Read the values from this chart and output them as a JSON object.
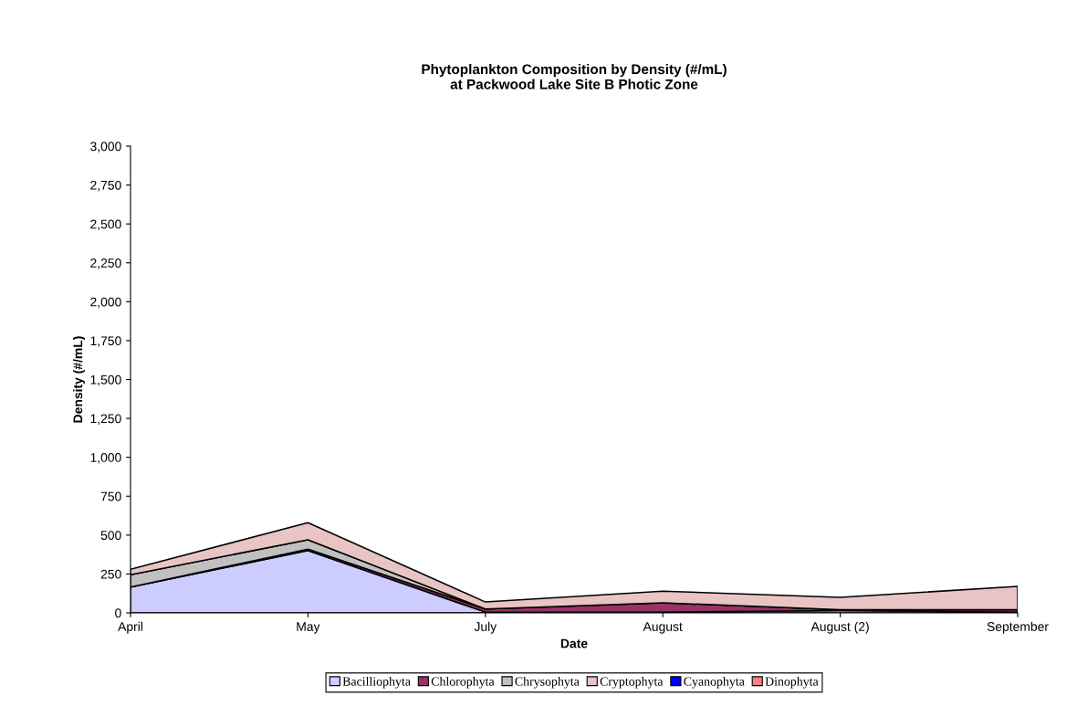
{
  "chart_data": {
    "type": "area",
    "stacked": true,
    "title": "Phytoplankton Composition by Density (#/mL)\nat Packwood Lake Site B Photic Zone",
    "xlabel": "Date",
    "ylabel": "Density (#/mL)",
    "categories": [
      "April",
      "May",
      "July",
      "August",
      "August (2)",
      "September"
    ],
    "series": [
      {
        "name": "Bacilliophyta",
        "color": "#ccccff",
        "values": [
          166,
          400,
          5,
          5,
          15,
          5
        ]
      },
      {
        "name": "Chlorophyta",
        "color": "#993366",
        "values": [
          0,
          10,
          20,
          60,
          5,
          15
        ]
      },
      {
        "name": "Chrysophyta",
        "color": "#c0c0c0",
        "values": [
          79,
          60,
          0,
          0,
          0,
          0
        ]
      },
      {
        "name": "Cryptophyta",
        "color": "#e8c4c4",
        "values": [
          35,
          110,
          45,
          75,
          80,
          150
        ]
      },
      {
        "name": "Cyanophyta",
        "color": "#0000ff",
        "values": [
          null,
          null,
          null,
          null,
          null,
          null
        ]
      },
      {
        "name": "Dinophyta",
        "color": "#ff8080",
        "values": [
          null,
          null,
          null,
          null,
          null,
          null
        ]
      }
    ],
    "ylim": [
      0,
      3000
    ],
    "yticks": [
      {
        "value": 0,
        "label": "0"
      },
      {
        "value": 250,
        "label": "250"
      },
      {
        "value": 500,
        "label": "500"
      },
      {
        "value": 750,
        "label": "750"
      },
      {
        "value": 1000,
        "label": "1,000"
      },
      {
        "value": 1250,
        "label": "1,250"
      },
      {
        "value": 1500,
        "label": "1,500"
      },
      {
        "value": 1750,
        "label": "1,750"
      },
      {
        "value": 2000,
        "label": "2,000"
      },
      {
        "value": 2250,
        "label": "2,250"
      },
      {
        "value": 2500,
        "label": "2,500"
      },
      {
        "value": 2750,
        "label": "2,750"
      },
      {
        "value": 3000,
        "label": "3,000"
      }
    ],
    "grid": false,
    "legend": "bottom"
  }
}
